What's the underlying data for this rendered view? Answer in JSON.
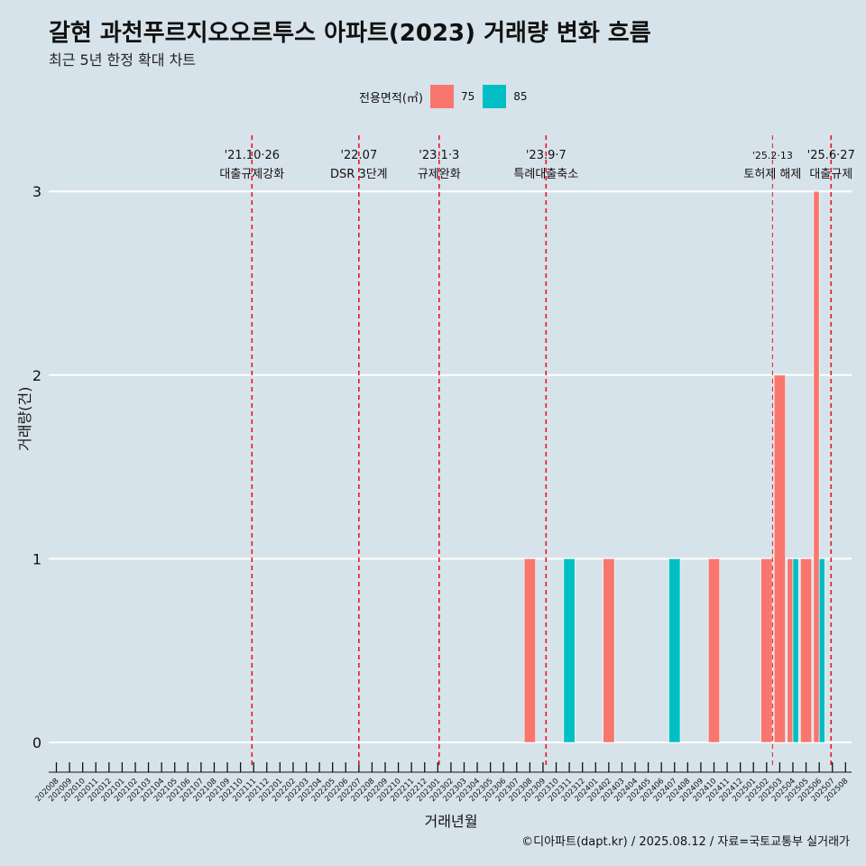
{
  "title": "갈현 과천푸르지오오르투스 아파트(2023) 거래량 변화 흐름",
  "subtitle": "최근 5년 한정 확대 차트",
  "legend": {
    "title": "전용면적(㎡)",
    "items": [
      {
        "label": "75",
        "color": "#f8766d"
      },
      {
        "label": "85",
        "color": "#00bfc4"
      }
    ]
  },
  "footer": "©디아파트(dapt.kr) / 2025.08.12 / 자료=국토교통부 실거래가",
  "chart_data": {
    "type": "bar",
    "xlabel": "거래년월",
    "ylabel": "거래량(건)",
    "ylim": [
      0,
      3
    ],
    "yticks": [
      0,
      1,
      2,
      3
    ],
    "grid": true,
    "legend_position": "top",
    "categories": [
      "202008",
      "202009",
      "202010",
      "202011",
      "202012",
      "202101",
      "202102",
      "202103",
      "202104",
      "202105",
      "202106",
      "202107",
      "202108",
      "202109",
      "202110",
      "202111",
      "202112",
      "202201",
      "202202",
      "202203",
      "202204",
      "202205",
      "202206",
      "202207",
      "202208",
      "202209",
      "202210",
      "202211",
      "202212",
      "202301",
      "202302",
      "202303",
      "202304",
      "202305",
      "202306",
      "202307",
      "202308",
      "202309",
      "202310",
      "202311",
      "202312",
      "202401",
      "202402",
      "202403",
      "202404",
      "202405",
      "202406",
      "202407",
      "202408",
      "202409",
      "202410",
      "202411",
      "202412",
      "202501",
      "202502",
      "202503",
      "202504",
      "202505",
      "202506",
      "202507",
      "202508"
    ],
    "series": [
      {
        "name": "75",
        "color": "#f8766d",
        "points": [
          {
            "x": "202308",
            "y": 1
          },
          {
            "x": "202402",
            "y": 1
          },
          {
            "x": "202410",
            "y": 1
          },
          {
            "x": "202502",
            "y": 1
          },
          {
            "x": "202503",
            "y": 2
          },
          {
            "x": "202504",
            "y": 1
          },
          {
            "x": "202505",
            "y": 1
          },
          {
            "x": "202506",
            "y": 3
          }
        ]
      },
      {
        "name": "85",
        "color": "#00bfc4",
        "points": [
          {
            "x": "202311",
            "y": 1
          },
          {
            "x": "202407",
            "y": 1
          },
          {
            "x": "202504",
            "y": 1
          },
          {
            "x": "202506",
            "y": 1
          }
        ]
      }
    ],
    "events": [
      {
        "date": "'21.10·26",
        "label": "대출규제강화",
        "x": 202110.87
      },
      {
        "date": "'22.07",
        "label": "DSR 3단계",
        "x": 202207.0
      },
      {
        "date": "'23.1·3",
        "label": "규제완화",
        "x": 202301.1
      },
      {
        "date": "'23.9·7",
        "label": "특례대출축소",
        "x": 202309.23
      },
      {
        "date": "'25.2·13",
        "label": "토허제 해제",
        "x": 202502.45
      },
      {
        "date": "'25.6·27",
        "label": "대출규제",
        "x": 202506.9
      }
    ]
  }
}
